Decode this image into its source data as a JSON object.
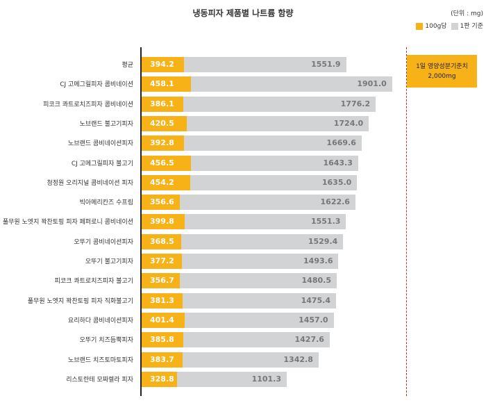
{
  "chart_data": {
    "type": "bar",
    "title": "냉동피자 제품별 나트륨 함량",
    "unit": "(단위 : mg)",
    "legend": [
      "100g당",
      "1판 기준"
    ],
    "colors": {
      "per100g": "#f7b218",
      "perPizza": "#d2d3d5",
      "reference": "#c0302a"
    },
    "reference": {
      "label": "1일 영양성분기준치",
      "value_label": "2,000mg",
      "value": 2000
    },
    "categories": [
      "평균",
      "CJ 고메그릴피자 콤비네이션",
      "피코크 콰트로치즈피자 콤비네이션",
      "노브랜드 불고기피자",
      "노브랜드 콤비네이션피자",
      "CJ 고메그릴피자 불고기",
      "청정원 오리지널 콤비네이션 피자",
      "빅아메리칸즈 수프림",
      "풀무원 노엣지 꽉찬토핑 피자 페퍼로니 콤비네이션",
      "오뚜기 콤비네이션피자",
      "오뚜기 불고기피자",
      "피코크 콰트로치즈피자 불고기",
      "풀무원 노엣지 꽉찬토핑 피자 직화불고기",
      "요리하다 콤비네이션피자",
      "오뚜기 치즈듬뿍피자",
      "노브랜드 치즈토마토피자",
      "리스토란테 모짜렐라 피자"
    ],
    "series": [
      {
        "name": "100g당",
        "values": [
          "394.2",
          "458.1",
          "386.1",
          "420.5",
          "392.8",
          "456.5",
          "454.2",
          "356.6",
          "399.8",
          "368.5",
          "377.2",
          "356.7",
          "381.3",
          "401.4",
          "385.8",
          "383.7",
          "328.8"
        ]
      },
      {
        "name": "1판 기준",
        "values": [
          "1551.9",
          "1901.0",
          "1776.2",
          "1724.0",
          "1669.6",
          "1643.3",
          "1635.0",
          "1622.6",
          "1551.3",
          "1529.4",
          "1493.6",
          "1480.5",
          "1475.4",
          "1457.0",
          "1427.6",
          "1342.8",
          "1101.3"
        ]
      }
    ]
  }
}
